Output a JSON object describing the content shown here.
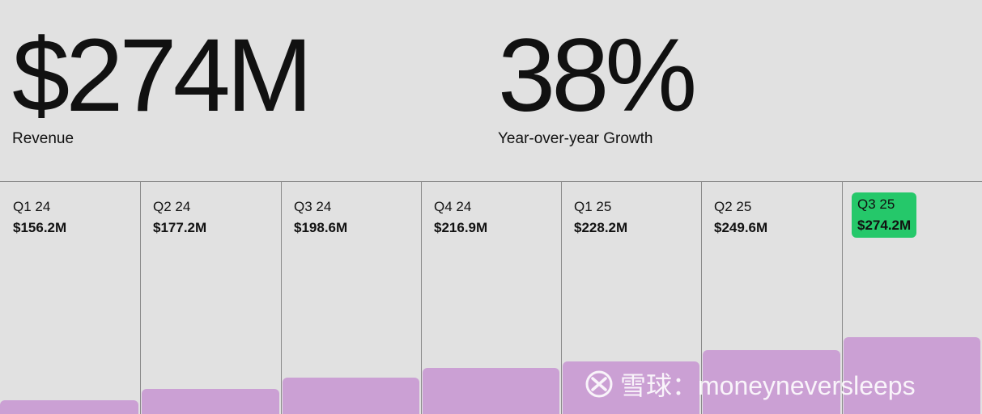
{
  "kpis": {
    "revenue": {
      "value": "$274M",
      "label": "Revenue"
    },
    "growth": {
      "value": "38%",
      "label": "Year-over-year Growth"
    }
  },
  "colors": {
    "background": "#e1e1e1",
    "bar": "#cba0d4",
    "highlight": "#25c86a",
    "divider": "#8a8a8a"
  },
  "watermark": {
    "text": "雪球：moneyneversleeps"
  },
  "chart_data": {
    "type": "bar",
    "categories": [
      "Q1 24",
      "Q2 24",
      "Q3 24",
      "Q4 24",
      "Q1 25",
      "Q2 25",
      "Q3 25"
    ],
    "value_labels": [
      "$156.2M",
      "$177.2M",
      "$198.6M",
      "$216.9M",
      "$228.2M",
      "$249.6M",
      "$274.2M"
    ],
    "values": [
      156.2,
      177.2,
      198.6,
      216.9,
      228.2,
      249.6,
      274.2
    ],
    "unit": "$M",
    "highlight_index": 6,
    "grid": false
  }
}
